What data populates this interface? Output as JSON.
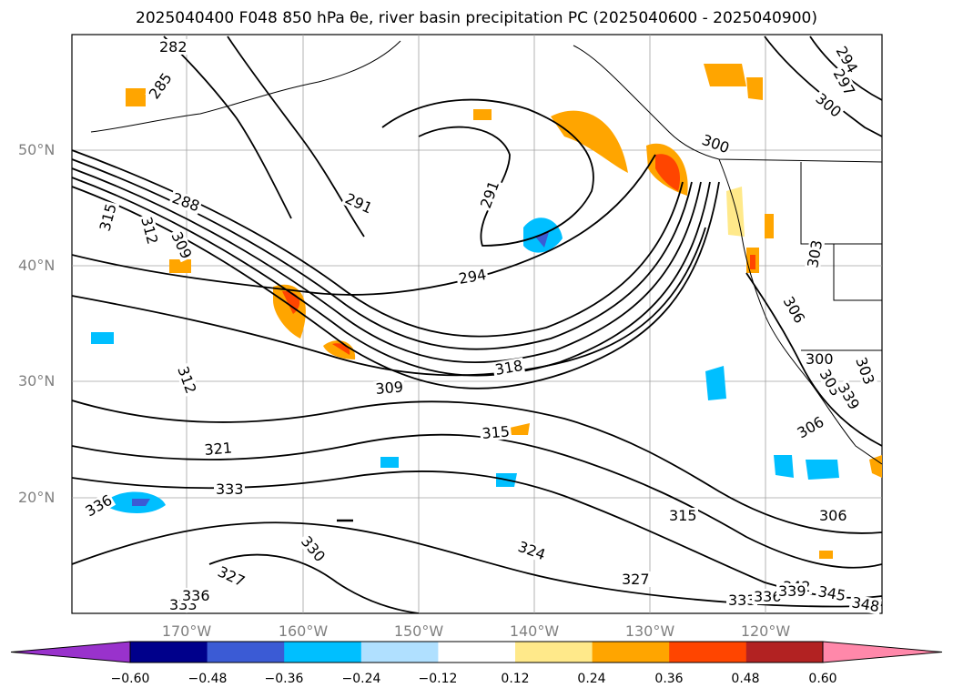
{
  "title": "2025040400 F048 850 hPa θe, river basin precipitation PC (2025040600 - 2025040900)",
  "map": {
    "lat_labels": [
      "50°N",
      "40°N",
      "30°N",
      "20°N"
    ],
    "lon_labels": [
      "170°W",
      "160°W",
      "150°W",
      "140°W",
      "130°W",
      "120°W"
    ],
    "contour_labels": [
      "282",
      "285",
      "288",
      "291",
      "291",
      "294",
      "300",
      "300",
      "297",
      "294",
      "315",
      "312",
      "309",
      "312",
      "309",
      "318",
      "315",
      "321",
      "333",
      "336",
      "330",
      "327",
      "333",
      "336",
      "324",
      "327",
      "315",
      "306",
      "303",
      "306",
      "303",
      "300",
      "306",
      "303",
      "339",
      "342",
      "345",
      "348",
      "333",
      "336",
      "339"
    ]
  },
  "colorbar": {
    "ticks": [
      "−0.60",
      "−0.48",
      "−0.36",
      "−0.24",
      "−0.12",
      "0.12",
      "0.24",
      "0.36",
      "0.48",
      "0.60"
    ],
    "colors": [
      "#9932cc",
      "#00008b",
      "#3b5bd5",
      "#00bfff",
      "#b0e0ff",
      "#ffffff",
      "#ffe98a",
      "#ffa500",
      "#ff4500",
      "#b22222",
      "#ff88aa"
    ]
  }
}
